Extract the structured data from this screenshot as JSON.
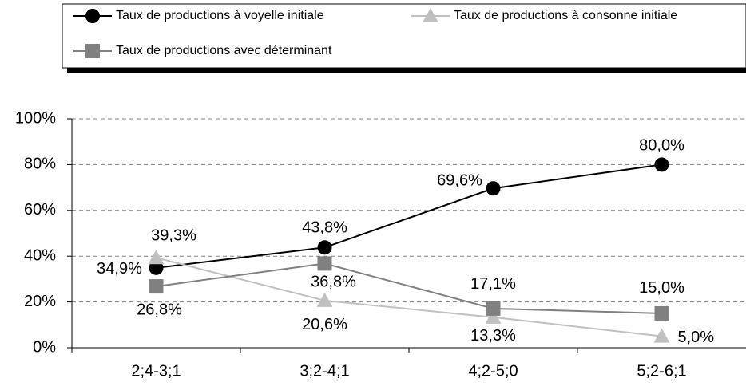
{
  "chart_data": {
    "type": "line",
    "categories": [
      "2;4-3;1",
      "3;2-4;1",
      "4;2-5;0",
      "5;2-6;1"
    ],
    "series": [
      {
        "name": "Taux de productions à voyelle initiale",
        "color": "#000000",
        "marker": "circle",
        "values": [
          34.9,
          43.8,
          69.6,
          80.0
        ],
        "value_labels": [
          "34,9%",
          "43,8%",
          "69,6%",
          "80,0%"
        ]
      },
      {
        "name": "Taux de productions à consonne initiale",
        "color": "#c0c0c0",
        "marker": "triangle",
        "values": [
          39.3,
          20.6,
          13.3,
          5.0
        ],
        "value_labels": [
          "39,3%",
          "20,6%",
          "13,3%",
          "5,0%"
        ]
      },
      {
        "name": "Taux de productions avec déterminant",
        "color": "#808080",
        "marker": "square",
        "values": [
          26.8,
          36.8,
          17.1,
          15.0
        ],
        "value_labels": [
          "26,8%",
          "36,8%",
          "17,1%",
          "15,0%"
        ]
      }
    ],
    "ylim": [
      0,
      100
    ],
    "yticks": [
      {
        "value": 0,
        "label": "0%"
      },
      {
        "value": 20,
        "label": "20%"
      },
      {
        "value": 40,
        "label": "40%"
      },
      {
        "value": 60,
        "label": "60%"
      },
      {
        "value": 80,
        "label": "80%"
      },
      {
        "value": 100,
        "label": "100%"
      }
    ],
    "grid": true,
    "legend": "top"
  }
}
